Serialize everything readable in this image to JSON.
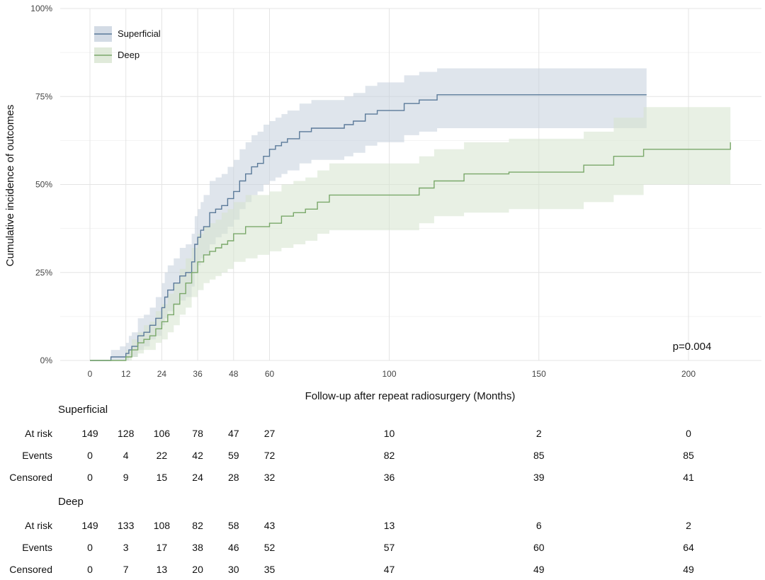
{
  "chart_data": {
    "type": "line",
    "title": "",
    "xlabel": "Follow-up after repeat radiosurgery (Months)",
    "ylabel": "Cumulative incidence of outcomes",
    "xlim": [
      -5,
      215
    ],
    "ylim": [
      0,
      1
    ],
    "x_ticks": [
      0,
      12,
      24,
      36,
      48,
      60,
      100,
      150,
      200
    ],
    "y_ticks": [
      0,
      0.25,
      0.5,
      0.75,
      1.0
    ],
    "y_tick_labels": [
      "0%",
      "25%",
      "50%",
      "75%",
      "100%"
    ],
    "grid": true,
    "legend": "top-left",
    "annotation": "p=0.004",
    "series": [
      {
        "name": "Superficial",
        "color": "#5b7a99",
        "band_color": "#c4cfdc",
        "x": [
          0,
          7,
          8,
          10,
          12,
          13,
          14,
          16,
          18,
          20,
          22,
          24,
          25,
          26,
          28,
          30,
          32,
          34,
          35,
          36,
          37,
          38,
          40,
          42,
          44,
          46,
          48,
          50,
          52,
          54,
          56,
          58,
          60,
          62,
          64,
          66,
          70,
          74,
          80,
          85,
          88,
          92,
          96,
          100,
          105,
          110,
          116,
          186
        ],
        "y": [
          0,
          0.01,
          0.01,
          0.01,
          0.02,
          0.03,
          0.04,
          0.07,
          0.08,
          0.1,
          0.12,
          0.15,
          0.18,
          0.2,
          0.22,
          0.24,
          0.25,
          0.28,
          0.33,
          0.35,
          0.37,
          0.38,
          0.42,
          0.43,
          0.44,
          0.46,
          0.48,
          0.51,
          0.53,
          0.55,
          0.56,
          0.58,
          0.6,
          0.61,
          0.62,
          0.63,
          0.65,
          0.66,
          0.66,
          0.67,
          0.68,
          0.7,
          0.71,
          0.71,
          0.73,
          0.74,
          0.755,
          0.755
        ],
        "lower": [
          0,
          0,
          0,
          0,
          0,
          0.01,
          0.01,
          0.03,
          0.04,
          0.06,
          0.07,
          0.1,
          0.12,
          0.14,
          0.16,
          0.17,
          0.18,
          0.21,
          0.25,
          0.27,
          0.29,
          0.3,
          0.33,
          0.35,
          0.36,
          0.38,
          0.4,
          0.43,
          0.45,
          0.47,
          0.48,
          0.5,
          0.51,
          0.52,
          0.53,
          0.54,
          0.56,
          0.57,
          0.57,
          0.58,
          0.59,
          0.61,
          0.62,
          0.62,
          0.64,
          0.65,
          0.66,
          0.66
        ],
        "upper": [
          0,
          0.03,
          0.03,
          0.04,
          0.05,
          0.07,
          0.08,
          0.12,
          0.13,
          0.15,
          0.18,
          0.22,
          0.25,
          0.27,
          0.29,
          0.32,
          0.33,
          0.36,
          0.41,
          0.43,
          0.45,
          0.47,
          0.51,
          0.52,
          0.53,
          0.55,
          0.57,
          0.6,
          0.62,
          0.64,
          0.65,
          0.67,
          0.68,
          0.69,
          0.7,
          0.71,
          0.73,
          0.74,
          0.74,
          0.75,
          0.76,
          0.78,
          0.79,
          0.79,
          0.81,
          0.82,
          0.83,
          0.83
        ]
      },
      {
        "name": "Deep",
        "color": "#7aa86a",
        "band_color": "#d5e3cd",
        "x": [
          0,
          9,
          12,
          14,
          16,
          18,
          20,
          22,
          24,
          26,
          28,
          30,
          32,
          34,
          36,
          38,
          40,
          42,
          44,
          46,
          48,
          52,
          56,
          60,
          64,
          68,
          72,
          76,
          80,
          90,
          100,
          110,
          115,
          125,
          140,
          160,
          165,
          175,
          185,
          214
        ],
        "y": [
          0,
          0,
          0.01,
          0.03,
          0.05,
          0.06,
          0.07,
          0.09,
          0.11,
          0.13,
          0.16,
          0.19,
          0.22,
          0.25,
          0.28,
          0.3,
          0.31,
          0.32,
          0.33,
          0.34,
          0.36,
          0.38,
          0.38,
          0.39,
          0.41,
          0.42,
          0.43,
          0.45,
          0.47,
          0.47,
          0.47,
          0.49,
          0.51,
          0.53,
          0.535,
          0.535,
          0.555,
          0.58,
          0.6,
          0.62
        ],
        "lower": [
          0,
          0,
          0,
          0.01,
          0.02,
          0.03,
          0.03,
          0.05,
          0.06,
          0.08,
          0.1,
          0.13,
          0.15,
          0.18,
          0.2,
          0.22,
          0.23,
          0.24,
          0.25,
          0.26,
          0.28,
          0.29,
          0.3,
          0.31,
          0.32,
          0.33,
          0.34,
          0.36,
          0.37,
          0.37,
          0.37,
          0.39,
          0.41,
          0.42,
          0.43,
          0.43,
          0.45,
          0.47,
          0.5,
          0.5
        ],
        "upper": [
          0,
          0,
          0.03,
          0.06,
          0.08,
          0.1,
          0.11,
          0.14,
          0.16,
          0.19,
          0.22,
          0.26,
          0.29,
          0.32,
          0.36,
          0.38,
          0.39,
          0.4,
          0.42,
          0.43,
          0.45,
          0.47,
          0.47,
          0.48,
          0.5,
          0.51,
          0.52,
          0.54,
          0.56,
          0.56,
          0.56,
          0.58,
          0.6,
          0.62,
          0.63,
          0.63,
          0.65,
          0.69,
          0.72,
          0.72
        ]
      }
    ]
  },
  "risk_table": {
    "times": [
      0,
      12,
      24,
      36,
      48,
      60,
      100,
      150,
      200
    ],
    "groups": [
      {
        "name": "Superficial",
        "rows": [
          {
            "label": "At risk",
            "values": [
              "149",
              "128",
              "106",
              "78",
              "47",
              "27",
              "10",
              "2",
              "0"
            ]
          },
          {
            "label": "Events",
            "values": [
              "0",
              "4",
              "22",
              "42",
              "59",
              "72",
              "82",
              "85",
              "85"
            ]
          },
          {
            "label": "Censored",
            "values": [
              "0",
              "9",
              "15",
              "24",
              "28",
              "32",
              "36",
              "39",
              "41"
            ]
          }
        ]
      },
      {
        "name": "Deep",
        "rows": [
          {
            "label": "At risk",
            "values": [
              "149",
              "133",
              "108",
              "82",
              "58",
              "43",
              "13",
              "6",
              "2"
            ]
          },
          {
            "label": "Events",
            "values": [
              "0",
              "3",
              "17",
              "38",
              "46",
              "52",
              "57",
              "60",
              "64"
            ]
          },
          {
            "label": "Censored",
            "values": [
              "0",
              "7",
              "13",
              "20",
              "30",
              "35",
              "47",
              "49",
              "49"
            ]
          }
        ]
      }
    ]
  }
}
